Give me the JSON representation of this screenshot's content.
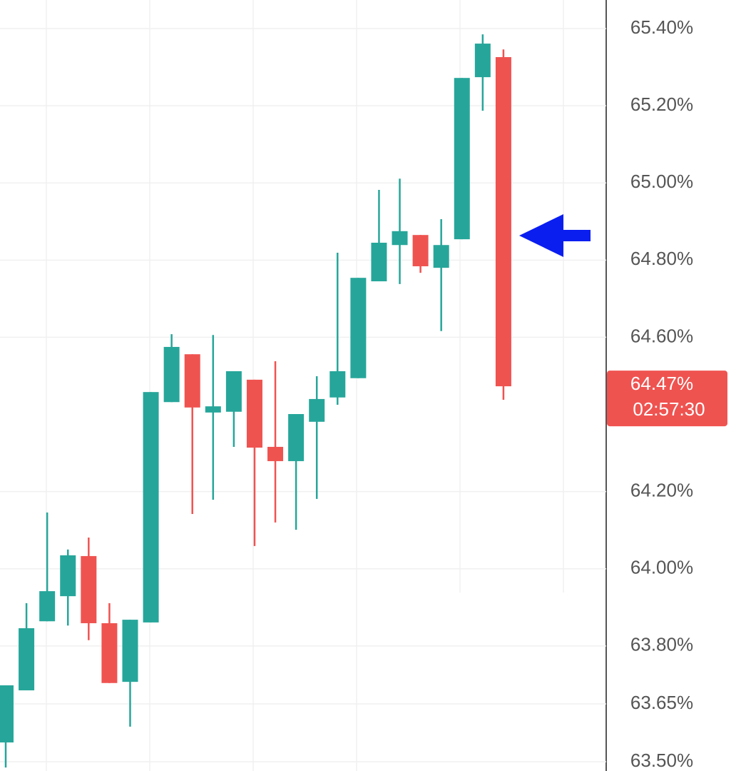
{
  "chart_data": {
    "type": "candlestick",
    "up_color": "#26a69a",
    "down_color": "#ef5350",
    "open": [
      63.55,
      63.685,
      63.864,
      63.929,
      64.033,
      63.859,
      63.707,
      63.861,
      64.432,
      64.556,
      64.405,
      64.407,
      64.49,
      64.316,
      64.279,
      64.381,
      64.444,
      64.494,
      64.745,
      64.839,
      64.865,
      64.78,
      64.854,
      65.274,
      65.326
    ],
    "high": [
      63.698,
      63.911,
      64.146,
      64.05,
      64.081,
      63.911,
      63.868,
      64.458,
      64.608,
      64.556,
      64.606,
      64.512,
      64.49,
      64.538,
      64.401,
      64.499,
      64.819,
      64.754,
      64.982,
      65.011,
      64.865,
      64.906,
      65.272,
      65.385,
      65.346
    ],
    "low": [
      63.485,
      63.685,
      63.864,
      63.853,
      63.815,
      63.704,
      63.591,
      63.861,
      64.432,
      64.142,
      64.179,
      64.316,
      64.059,
      64.12,
      64.101,
      64.181,
      64.425,
      64.494,
      64.745,
      64.738,
      64.767,
      64.616,
      64.854,
      65.187,
      64.438
    ],
    "close": [
      63.698,
      63.846,
      63.942,
      64.035,
      63.859,
      63.704,
      63.868,
      64.458,
      64.575,
      64.418,
      64.421,
      64.512,
      64.314,
      64.279,
      64.401,
      64.44,
      64.512,
      64.754,
      64.845,
      64.875,
      64.784,
      64.839,
      65.272,
      65.361,
      64.473
    ],
    "ylim": [
      63.476,
      65.474
    ],
    "yticks": [
      {
        "value": 63.5,
        "label": "63.50%"
      },
      {
        "value": 63.65,
        "label": "63.65%"
      },
      {
        "value": 63.8,
        "label": "63.80%"
      },
      {
        "value": 64.0,
        "label": "64.00%"
      },
      {
        "value": 64.2,
        "label": "64.20%"
      },
      {
        "value": 64.6,
        "label": "64.60%"
      },
      {
        "value": 64.8,
        "label": "64.80%"
      },
      {
        "value": 65.0,
        "label": "65.00%"
      },
      {
        "value": 65.2,
        "label": "65.20%"
      },
      {
        "value": 65.4,
        "label": "65.40%"
      }
    ],
    "grid": true,
    "last_price_label": "64.47%",
    "countdown": "02:57:30"
  }
}
